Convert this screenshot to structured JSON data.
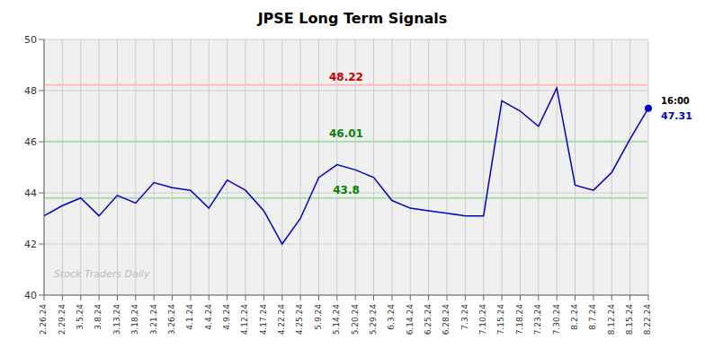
{
  "chart_data": {
    "type": "line",
    "title": "JPSE Long Term Signals",
    "watermark": "Stock Traders Daily",
    "color": "#0000cc",
    "background_color": "#ffffff",
    "plot_bg_color": "#f0f0f0",
    "categories": [
      "2.26.24",
      "2.29.24",
      "3.5.24",
      "3.8.24",
      "3.13.24",
      "3.18.24",
      "3.21.24",
      "3.26.24",
      "4.1.24",
      "4.4.24",
      "4.9.24",
      "4.12.24",
      "4.17.24",
      "4.22.24",
      "4.25.24",
      "5.9.24",
      "5.14.24",
      "5.20.24",
      "5.29.24",
      "6.3.24",
      "6.14.24",
      "6.25.24",
      "6.28.24",
      "7.3.24",
      "7.10.24",
      "7.15.24",
      "7.18.24",
      "7.23.24",
      "7.30.24",
      "8.2.24",
      "8.7.24",
      "8.12.24",
      "8.15.24",
      "8.22.24"
    ],
    "values": [
      43.1,
      43.5,
      43.8,
      43.1,
      43.9,
      43.6,
      44.4,
      44.2,
      44.1,
      43.4,
      44.5,
      44.1,
      43.3,
      42.0,
      43.0,
      44.6,
      45.1,
      44.9,
      44.6,
      43.7,
      43.4,
      43.3,
      43.2,
      43.1,
      43.1,
      47.6,
      47.2,
      46.6,
      48.1,
      44.3,
      44.1,
      44.8,
      46.1,
      47.31
    ],
    "ylim": [
      40,
      50
    ],
    "yticks": [
      40,
      42,
      44,
      46,
      48,
      50
    ],
    "grid": true,
    "reference_lines": [
      {
        "value": 48.22,
        "label": "48.22",
        "color": "#ffbbbb",
        "label_color": "#cc0000"
      },
      {
        "value": 46.01,
        "label": "46.01",
        "color": "#aaddaa",
        "label_color": "#008800"
      },
      {
        "value": 43.8,
        "label": "43.8",
        "color": "#aaddaa",
        "label_color": "#008800"
      }
    ],
    "annotations": [
      {
        "text": "16:00",
        "x": "8.22.24",
        "y": 47.31,
        "color": "#000000"
      },
      {
        "text": "47.31",
        "x": "8.22.24",
        "y": 47.31,
        "color": "#0000cc"
      }
    ]
  }
}
